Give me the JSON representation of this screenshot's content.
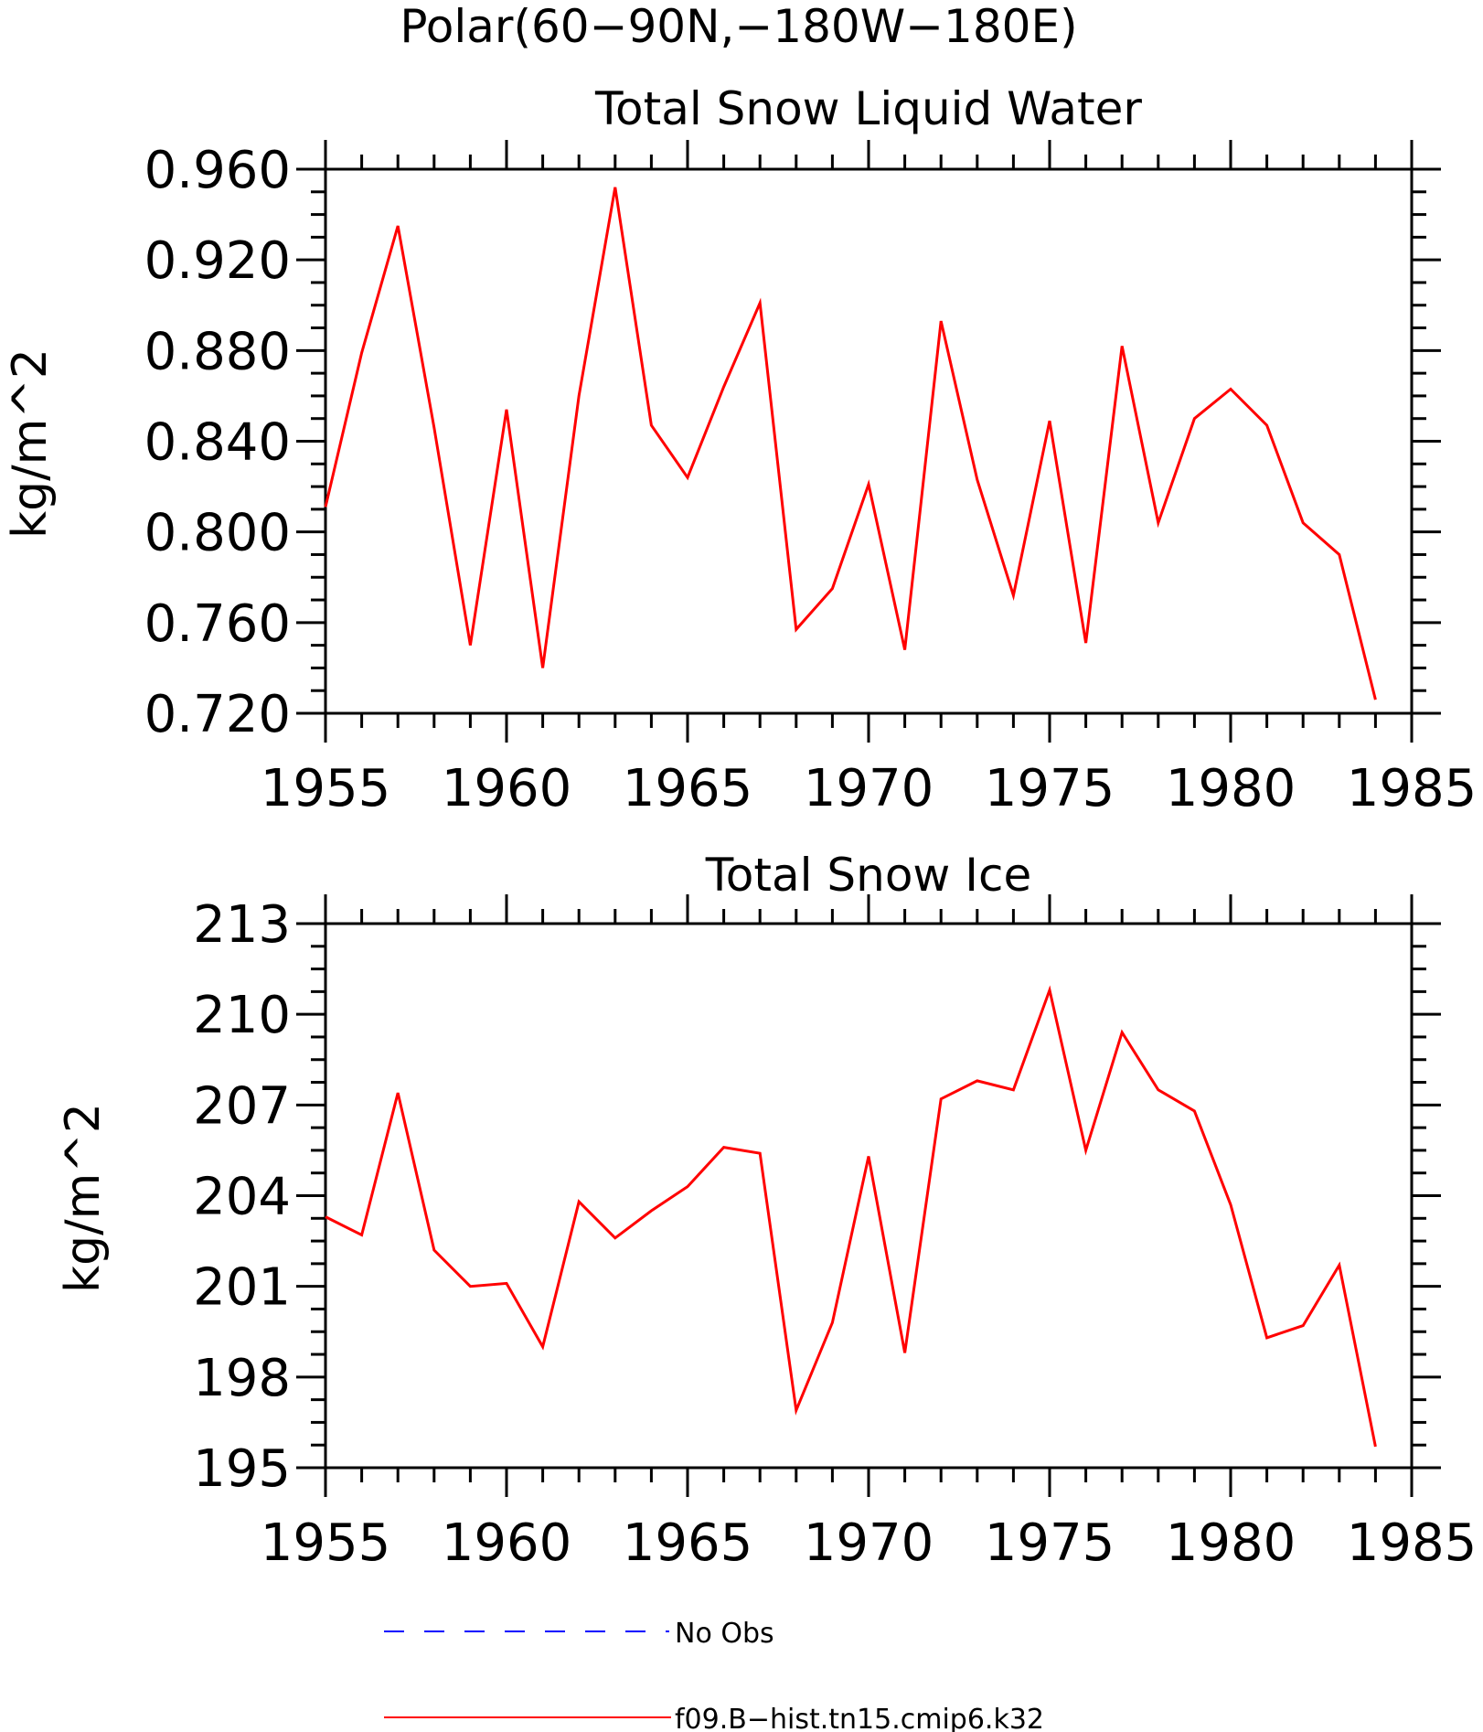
{
  "figure_title": "Polar(60−90N,−180W−180E)",
  "chart_data": [
    {
      "type": "line",
      "title": "Total Snow Liquid Water",
      "xlabel": "",
      "ylabel": "kg/m^2",
      "xlim": [
        1955,
        1985
      ],
      "ylim": [
        0.72,
        0.96
      ],
      "x_ticks": [
        "1955",
        "1960",
        "1965",
        "1970",
        "1975",
        "1980",
        "1985"
      ],
      "y_ticks": [
        "0.720",
        "0.760",
        "0.800",
        "0.840",
        "0.880",
        "0.920",
        "0.960"
      ],
      "grid": false,
      "series": [
        {
          "name": "f09.B−hist.tn15.cmip6.k32",
          "color": "#ff0000",
          "x": [
            1955,
            1956,
            1957,
            1958,
            1959,
            1960,
            1961,
            1962,
            1963,
            1964,
            1965,
            1966,
            1967,
            1968,
            1969,
            1970,
            1971,
            1972,
            1973,
            1974,
            1975,
            1976,
            1977,
            1978,
            1979,
            1980,
            1981,
            1982,
            1983,
            1984
          ],
          "values": [
            0.811,
            0.879,
            0.935,
            0.846,
            0.75,
            0.854,
            0.74,
            0.86,
            0.952,
            0.847,
            0.824,
            0.864,
            0.901,
            0.757,
            0.775,
            0.821,
            0.748,
            0.893,
            0.823,
            0.772,
            0.849,
            0.751,
            0.882,
            0.804,
            0.85,
            0.863,
            0.847,
            0.804,
            0.79,
            0.726
          ]
        }
      ]
    },
    {
      "type": "line",
      "title": "Total Snow Ice",
      "xlabel": "",
      "ylabel": "kg/m^2",
      "xlim": [
        1955,
        1985
      ],
      "ylim": [
        195,
        213
      ],
      "x_ticks": [
        "1955",
        "1960",
        "1965",
        "1970",
        "1975",
        "1980",
        "1985"
      ],
      "y_ticks": [
        "195",
        "198",
        "201",
        "204",
        "207",
        "210",
        "213"
      ],
      "grid": false,
      "series": [
        {
          "name": "f09.B−hist.tn15.cmip6.k32",
          "color": "#ff0000",
          "x": [
            1955,
            1956,
            1957,
            1958,
            1959,
            1960,
            1961,
            1962,
            1963,
            1964,
            1965,
            1966,
            1967,
            1968,
            1969,
            1970,
            1971,
            1972,
            1973,
            1974,
            1975,
            1976,
            1977,
            1978,
            1979,
            1980,
            1981,
            1982,
            1983,
            1984
          ],
          "values": [
            203.3,
            202.7,
            207.4,
            202.2,
            201.0,
            201.1,
            199.0,
            203.8,
            202.6,
            203.5,
            204.3,
            205.6,
            205.4,
            196.9,
            199.8,
            205.3,
            198.8,
            207.2,
            207.8,
            207.5,
            210.8,
            205.5,
            209.4,
            207.5,
            206.8,
            203.7,
            199.3,
            199.7,
            201.7,
            195.7
          ]
        }
      ]
    }
  ],
  "legend": {
    "placement": "bottom-center",
    "entries": [
      {
        "label": "No Obs",
        "color": "#0000ff",
        "style": "dashed"
      },
      {
        "label": "f09.B−hist.tn15.cmip6.k32",
        "color": "#ff0000",
        "style": "solid"
      }
    ]
  }
}
